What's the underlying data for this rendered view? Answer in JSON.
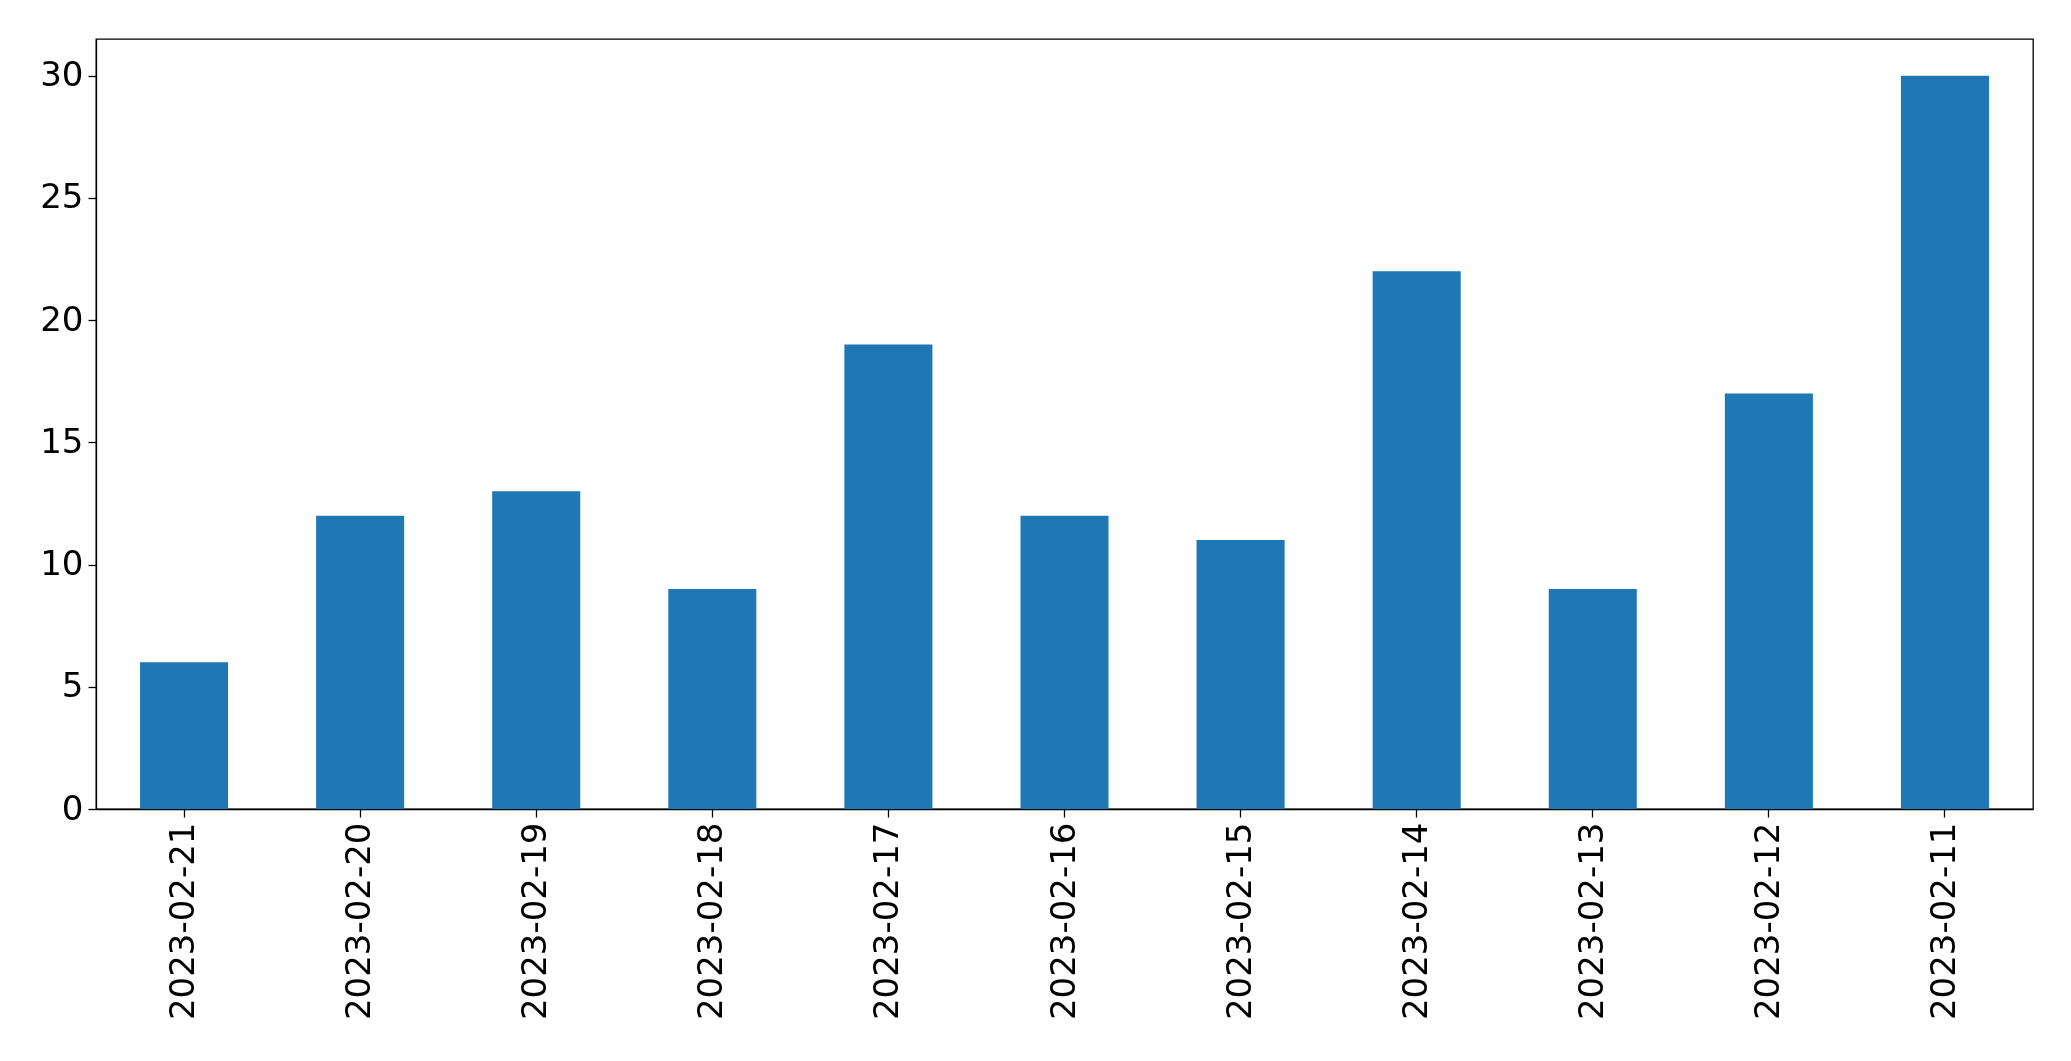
{
  "chart_data": {
    "type": "bar",
    "categories": [
      "2023-02-21",
      "2023-02-20",
      "2023-02-19",
      "2023-02-18",
      "2023-02-17",
      "2023-02-16",
      "2023-02-15",
      "2023-02-14",
      "2023-02-13",
      "2023-02-12",
      "2023-02-11"
    ],
    "values": [
      6,
      12,
      13,
      9,
      19,
      12,
      11,
      22,
      9,
      17,
      30
    ],
    "color": "#1f77b4",
    "ylim": [
      0,
      31.5
    ],
    "yticks": [
      0,
      5,
      10,
      15,
      20,
      25,
      30
    ]
  }
}
